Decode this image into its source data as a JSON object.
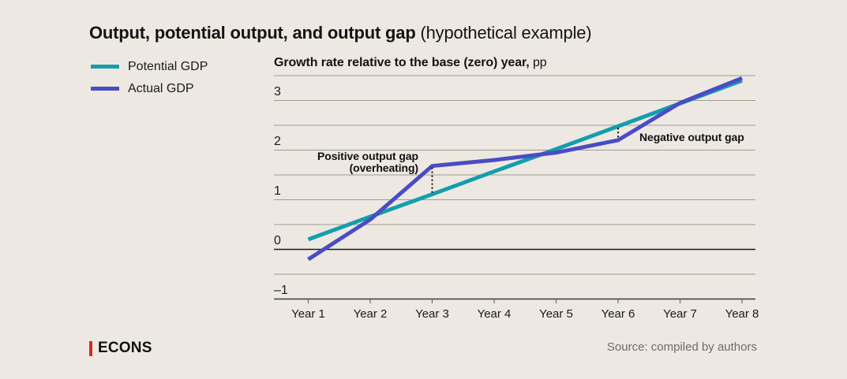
{
  "title": {
    "main": "Output, potential output, and output gap",
    "sub": " (hypothetical example)"
  },
  "legend": [
    {
      "label": "Potential GDP",
      "color": "#149EAD"
    },
    {
      "label": "Actual GDP",
      "color": "#4A4CC4"
    }
  ],
  "axis_title": {
    "bold": "Growth rate relative to the base (zero) year,",
    "unit": " pp"
  },
  "chart_data": {
    "type": "line",
    "title": "Output, potential output, and output gap (hypothetical example)",
    "xlabel": "",
    "ylabel": "Growth rate relative to the base (zero) year, pp",
    "x_labels": [
      "Year 1",
      "Year 2",
      "Year 3",
      "Year 4",
      "Year 5",
      "Year 6",
      "Year 7",
      "Year 8"
    ],
    "series": [
      {
        "name": "Potential GDP",
        "color": "#149EAD",
        "values": [
          0.2,
          0.66,
          1.11,
          1.57,
          2.02,
          2.48,
          2.94,
          3.4
        ]
      },
      {
        "name": "Actual GDP",
        "color": "#4A4CC4",
        "values": [
          -0.2,
          0.6,
          1.68,
          1.8,
          1.95,
          2.2,
          2.95,
          3.45
        ]
      }
    ],
    "ylim": [
      -1,
      3.5
    ],
    "yticks": [
      3,
      2,
      1,
      0,
      -1
    ],
    "grid_step": 0.5,
    "grid_on": true,
    "legend_position": "top-left",
    "gap_markers": [
      {
        "x_label": "Year 3",
        "x_index": 2,
        "label": "Positive output gap (overheating)"
      },
      {
        "x_label": "Year 6",
        "x_index": 5,
        "label": "Negative output gap"
      }
    ]
  },
  "annotations": {
    "positive_line1": "Positive output gap",
    "positive_line2": "(overheating)",
    "negative": "Negative output gap"
  },
  "footer": {
    "logo": "ECONS",
    "source": "Source: compiled by authors"
  },
  "colors": {
    "background": "#EDE9E2",
    "grid": "#A09B92",
    "zero_line": "#1A1A1A",
    "axis_line": "#3A3A38",
    "tick": "#6E6B64",
    "gap_marker": "#111111",
    "logo_red": "#D42B24",
    "source_text": "#6F6C66"
  }
}
